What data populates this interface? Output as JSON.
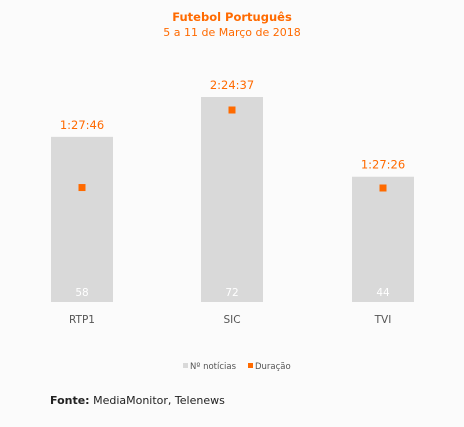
{
  "colors": {
    "accent": "#ff6a00",
    "bar": "#d9d9d9",
    "text": "#555555",
    "background": "#fbfbfb"
  },
  "chart_data": {
    "type": "bar",
    "title": "Futebol Português",
    "subtitle": "5 a 11 de Março de 2018",
    "categories": [
      "RTP1",
      "SIC",
      "TVI"
    ],
    "series": [
      {
        "name": "Nº notícias",
        "values": [
          58,
          72,
          44
        ],
        "labels": [
          "58",
          "72",
          "44"
        ],
        "kind": "bar"
      },
      {
        "name": "Duração",
        "values": [
          5266,
          8677,
          5246
        ],
        "labels": [
          "1:27:46",
          "2:24:37",
          "1:27:26"
        ],
        "kind": "marker"
      }
    ],
    "legend_position": "bottom",
    "grid": false
  },
  "source": {
    "prefix": "Fonte:",
    "text": "MediaMonitor, Telenews"
  }
}
